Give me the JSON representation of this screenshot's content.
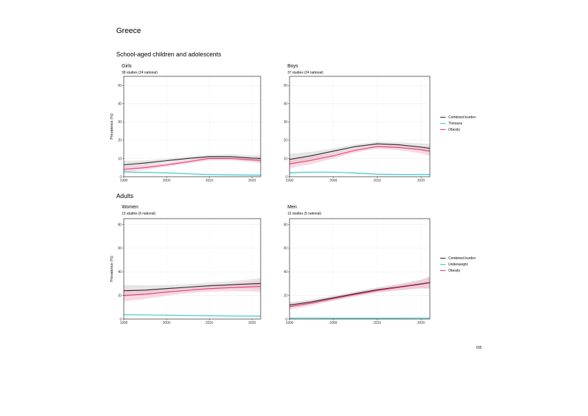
{
  "country": "Greece",
  "sections": {
    "children": "School-aged children and adolescents",
    "adults": "Adults"
  },
  "page_number": "105",
  "colors": {
    "combined": "#222222",
    "thinness": "#2ec4cc",
    "obesity": "#e8336b",
    "band_combined": "#cfcfcf",
    "band_obesity": "#f3b9cc"
  },
  "legends": {
    "children": [
      "Combined burden",
      "Thinness",
      "Obesity"
    ],
    "adults": [
      "Combined burden",
      "Underweight",
      "Obesity"
    ]
  },
  "chart_data": [
    {
      "type": "line",
      "title": "Girls",
      "subtitle": "38 studies (24 national)",
      "ylabel": "Prevalence (%)",
      "xlim": [
        1990,
        2022
      ],
      "ylim": [
        0,
        55
      ],
      "yticks": [
        0,
        10,
        20,
        30,
        40,
        50
      ],
      "xticks": [
        1990,
        2000,
        2010,
        2020
      ],
      "series": [
        {
          "key": "combined",
          "x": [
            1990,
            1995,
            2000,
            2005,
            2010,
            2015,
            2020,
            2022
          ],
          "y": [
            6.5,
            7.5,
            8.8,
            10.0,
            11.0,
            11.0,
            10.2,
            10.0
          ],
          "band": [
            2.0,
            1.5,
            1.0,
            1.0,
            1.0,
            1.2,
            1.5,
            2.0
          ]
        },
        {
          "key": "obesity",
          "x": [
            1990,
            1995,
            2000,
            2005,
            2010,
            2015,
            2020,
            2022
          ],
          "y": [
            4.0,
            5.0,
            6.5,
            8.2,
            10.0,
            10.0,
            9.2,
            9.0
          ],
          "band": [
            1.5,
            1.2,
            1.0,
            1.0,
            1.0,
            1.0,
            1.2,
            1.5
          ]
        },
        {
          "key": "thinness",
          "x": [
            1990,
            1995,
            2000,
            2005,
            2010,
            2015,
            2020,
            2022
          ],
          "y": [
            2.6,
            2.4,
            2.1,
            1.6,
            1.2,
            1.0,
            0.9,
            0.9
          ],
          "band": [
            0.5,
            0.4,
            0.3,
            0.3,
            0.3,
            0.3,
            0.3,
            0.4
          ]
        }
      ]
    },
    {
      "type": "line",
      "title": "Boys",
      "subtitle": "37 studies (24 national)",
      "ylabel": "",
      "xlim": [
        1990,
        2022
      ],
      "ylim": [
        0,
        55
      ],
      "yticks": [
        0,
        10,
        20,
        30,
        40,
        50
      ],
      "xticks": [
        1990,
        2000,
        2010,
        2020
      ],
      "series": [
        {
          "key": "combined",
          "x": [
            1990,
            1995,
            2000,
            2005,
            2010,
            2015,
            2020,
            2022
          ],
          "y": [
            9.5,
            11.5,
            14.0,
            16.5,
            18.0,
            17.5,
            16.2,
            15.5
          ],
          "band": [
            3.0,
            2.2,
            1.5,
            1.2,
            1.2,
            1.4,
            2.0,
            2.5
          ]
        },
        {
          "key": "obesity",
          "x": [
            1990,
            1995,
            2000,
            2005,
            2010,
            2015,
            2020,
            2022
          ],
          "y": [
            7.0,
            9.0,
            11.5,
            14.5,
            16.5,
            16.0,
            14.8,
            14.0
          ],
          "band": [
            2.5,
            2.0,
            1.5,
            1.2,
            1.2,
            1.4,
            2.0,
            2.5
          ]
        },
        {
          "key": "thinness",
          "x": [
            1990,
            1995,
            2000,
            2005,
            2010,
            2015,
            2020,
            2022
          ],
          "y": [
            2.2,
            2.5,
            2.5,
            2.0,
            1.4,
            1.2,
            1.2,
            1.2
          ],
          "band": [
            0.5,
            0.4,
            0.3,
            0.3,
            0.3,
            0.3,
            0.3,
            0.4
          ]
        }
      ]
    },
    {
      "type": "line",
      "title": "Women",
      "subtitle": "13 studies (6 national)",
      "ylabel": "Prevalence (%)",
      "xlim": [
        1990,
        2022
      ],
      "ylim": [
        0,
        85
      ],
      "yticks": [
        0,
        20,
        40,
        60,
        80
      ],
      "xticks": [
        1990,
        2000,
        2010,
        2020
      ],
      "series": [
        {
          "key": "combined",
          "x": [
            1990,
            1995,
            2000,
            2005,
            2010,
            2015,
            2020,
            2022
          ],
          "y": [
            24.0,
            24.5,
            25.8,
            27.0,
            28.2,
            29.0,
            29.8,
            30.0
          ],
          "band": [
            5.0,
            4.0,
            3.0,
            2.5,
            2.5,
            3.0,
            4.0,
            5.0
          ]
        },
        {
          "key": "obesity",
          "x": [
            1990,
            1995,
            2000,
            2005,
            2010,
            2015,
            2020,
            2022
          ],
          "y": [
            20.0,
            21.0,
            22.8,
            24.3,
            25.7,
            26.6,
            27.4,
            27.6
          ],
          "band": [
            5.0,
            4.0,
            3.0,
            2.5,
            2.5,
            3.0,
            4.0,
            5.0
          ]
        },
        {
          "key": "thinness",
          "x": [
            1990,
            1995,
            2000,
            2005,
            2010,
            2015,
            2020,
            2022
          ],
          "y": [
            3.7,
            3.5,
            3.3,
            3.0,
            2.8,
            2.6,
            2.5,
            2.5
          ],
          "band": [
            0.4,
            0.4,
            0.3,
            0.3,
            0.3,
            0.3,
            0.4,
            0.4
          ]
        }
      ]
    },
    {
      "type": "line",
      "title": "Men",
      "subtitle": "13 studies (5 national)",
      "ylabel": "",
      "xlim": [
        1990,
        2022
      ],
      "ylim": [
        0,
        85
      ],
      "yticks": [
        0,
        20,
        40,
        60,
        80
      ],
      "xticks": [
        1990,
        2000,
        2010,
        2020
      ],
      "series": [
        {
          "key": "combined",
          "x": [
            1990,
            1995,
            2000,
            2005,
            2010,
            2015,
            2020,
            2022
          ],
          "y": [
            11.8,
            14.5,
            18.0,
            21.5,
            24.8,
            27.2,
            29.8,
            31.0
          ],
          "band": [
            2.5,
            2.0,
            1.8,
            1.8,
            2.0,
            2.5,
            3.5,
            5.0
          ]
        },
        {
          "key": "obesity",
          "x": [
            1990,
            1995,
            2000,
            2005,
            2010,
            2015,
            2020,
            2022
          ],
          "y": [
            10.5,
            13.5,
            17.2,
            20.8,
            24.2,
            26.8,
            29.4,
            30.6
          ],
          "band": [
            2.5,
            2.0,
            1.8,
            1.8,
            2.0,
            2.5,
            3.5,
            5.0
          ]
        },
        {
          "key": "thinness",
          "x": [
            1990,
            1995,
            2000,
            2005,
            2010,
            2015,
            2020,
            2022
          ],
          "y": [
            0.8,
            0.8,
            0.7,
            0.7,
            0.7,
            0.7,
            0.8,
            0.8
          ],
          "band": [
            0.3,
            0.3,
            0.2,
            0.2,
            0.2,
            0.2,
            0.3,
            0.3
          ]
        }
      ]
    }
  ]
}
